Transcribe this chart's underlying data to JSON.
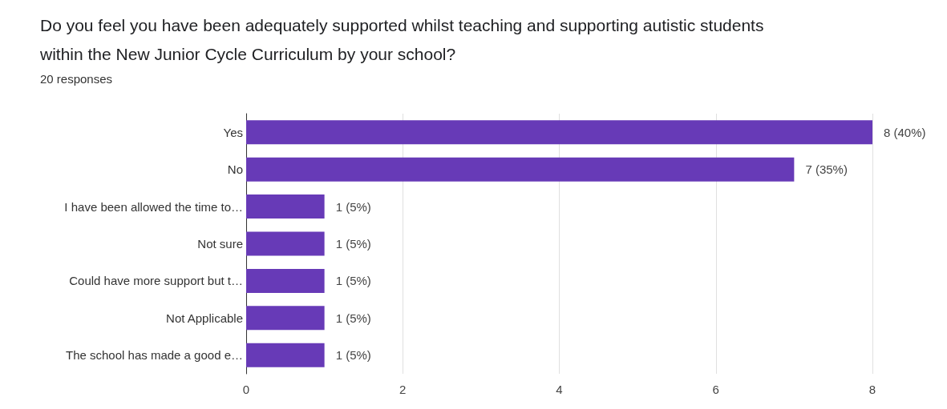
{
  "chart_data": {
    "type": "bar",
    "orientation": "horizontal",
    "title": "Do you feel you have been adequately supported whilst teaching and supporting autistic students\nwithin the New Junior Cycle Curriculum by your school?",
    "subtitle": "20 responses",
    "categories": [
      "Yes",
      "No",
      "I have been allowed the time to…",
      "Not sure",
      "Could have more support but t…",
      "Not Applicable",
      "The school has made a good e…"
    ],
    "values": [
      8,
      7,
      1,
      1,
      1,
      1,
      1
    ],
    "value_labels": [
      "8 (40%)",
      "7 (35%)",
      "1 (5%)",
      "1 (5%)",
      "1 (5%)",
      "1 (5%)",
      "1 (5%)"
    ],
    "color": "#673ab7",
    "xlim": [
      0,
      8
    ],
    "xticks": [
      0,
      2,
      4,
      6,
      8
    ],
    "grid": "x"
  }
}
